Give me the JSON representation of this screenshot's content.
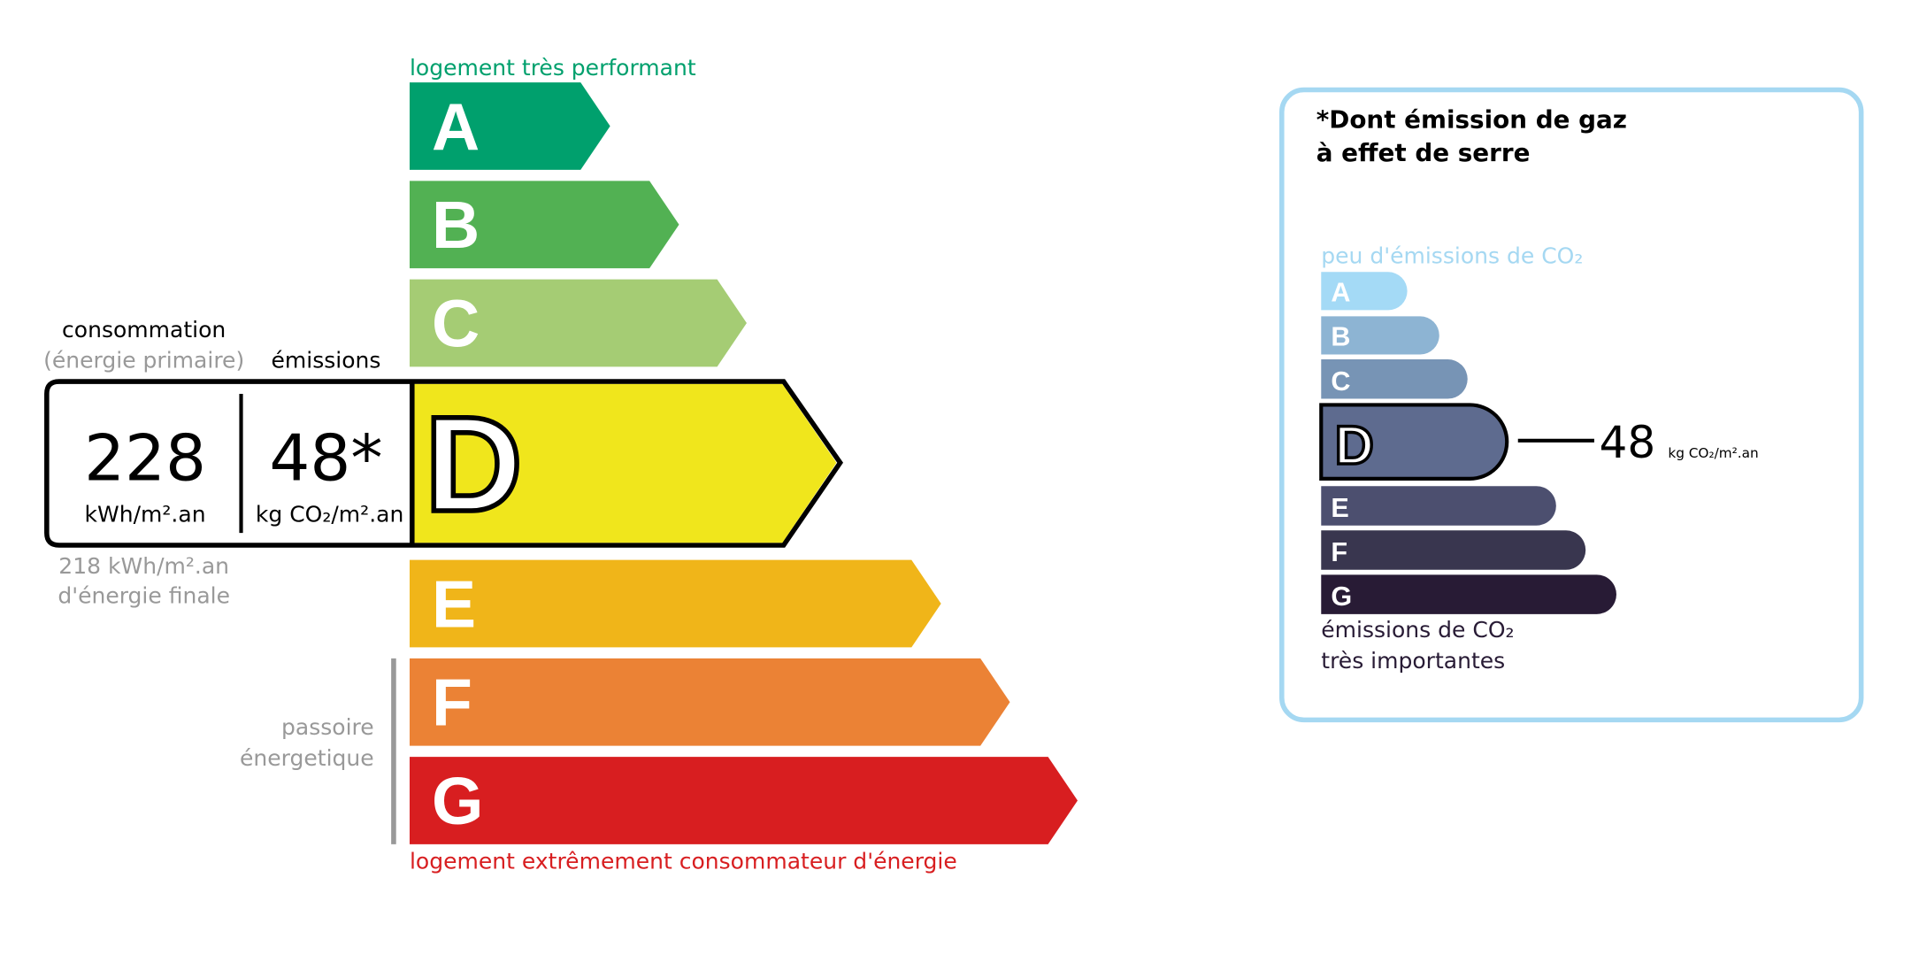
{
  "energy_label": {
    "top_label": "logement très performant",
    "bottom_label": "logement extrêmement consommateur d'énergie",
    "passoire_label": [
      "passoire",
      "énergetique"
    ],
    "classes": [
      {
        "letter": "A",
        "color": "#00a06d"
      },
      {
        "letter": "B",
        "color": "#52b153"
      },
      {
        "letter": "C",
        "color": "#a5cc74"
      },
      {
        "letter": "D",
        "color": "#f0e61c"
      },
      {
        "letter": "E",
        "color": "#f0b519"
      },
      {
        "letter": "F",
        "color": "#eb8235"
      },
      {
        "letter": "G",
        "color": "#d81e20"
      }
    ],
    "current_class": "D",
    "consumption_header": "consommation",
    "consumption_sub": "(énergie primaire)",
    "emissions_header": "émissions",
    "consumption_value": "228",
    "consumption_unit": "kWh/m².an",
    "emissions_value": "48*",
    "emissions_unit": "kg CO₂/m².an",
    "final_energy_value": "218 kWh/m².an",
    "final_energy_label": "d'énergie finale"
  },
  "ghg_label": {
    "title_line1": "*Dont émission de gaz",
    "title_line2": "à effet de serre",
    "top_label": "peu d'émissions de CO₂",
    "bottom_label_line1": "émissions de CO₂",
    "bottom_label_line2": "très importantes",
    "classes": [
      {
        "letter": "A",
        "color": "#a4daf6"
      },
      {
        "letter": "B",
        "color": "#8db4d3"
      },
      {
        "letter": "C",
        "color": "#7794b5"
      },
      {
        "letter": "D",
        "color": "#5e6b8f"
      },
      {
        "letter": "E",
        "color": "#4c4f6f"
      },
      {
        "letter": "F",
        "color": "#39364f"
      },
      {
        "letter": "G",
        "color": "#281b35"
      }
    ],
    "current_class": "D",
    "value": "48",
    "unit": "kg CO₂/m².an",
    "border_color": "#a5d8f2"
  }
}
